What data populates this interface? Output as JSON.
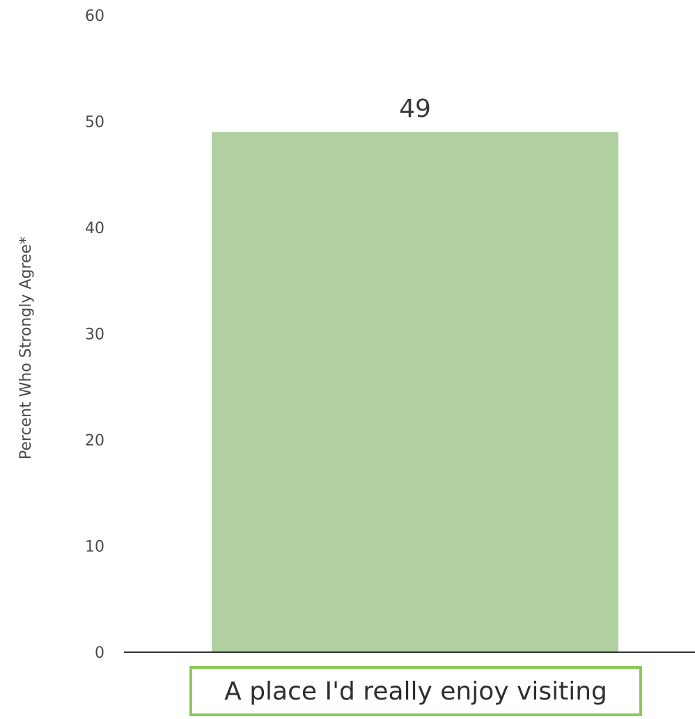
{
  "chart_data": {
    "type": "bar",
    "categories": [
      "A place I'd really enjoy visiting"
    ],
    "values": [
      49
    ],
    "data_labels": [
      "49"
    ],
    "ylabel": "Percent Who Strongly Agree*",
    "xlabel": "",
    "ylim": [
      0,
      60
    ],
    "yticks": [
      0,
      10,
      20,
      30,
      40,
      50,
      60
    ],
    "grid": false,
    "bar_color": "#b0d19f",
    "category_border_color": "#8cc859",
    "axis_color": "#333333"
  }
}
